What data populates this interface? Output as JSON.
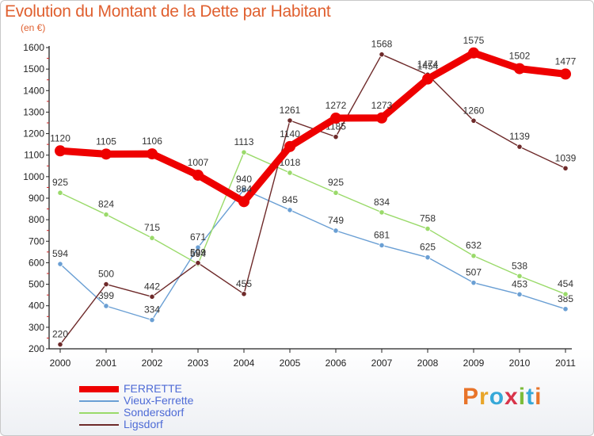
{
  "title": "Evolution du Montant de la Dette par Habitant",
  "unit_label": "(en €)",
  "brand": [
    "P",
    "r",
    "o",
    "x",
    "i",
    "t",
    "i"
  ],
  "chart_data": {
    "type": "line",
    "x": [
      "2000",
      "2001",
      "2002",
      "2003",
      "2004",
      "2005",
      "2006",
      "2007",
      "2008",
      "2009",
      "2010",
      "2011"
    ],
    "ylim": [
      200,
      1600
    ],
    "yticks": [
      200,
      300,
      400,
      500,
      600,
      700,
      800,
      900,
      1000,
      1100,
      1200,
      1300,
      1400,
      1500,
      1600
    ],
    "grid": false,
    "legend_position": "bottom-left",
    "series": [
      {
        "name": "FERRETTE",
        "color": "#ee0000",
        "values": [
          1120,
          1105,
          1106,
          1007,
          884,
          1140,
          1272,
          1273,
          1454,
          1575,
          1502,
          1477
        ]
      },
      {
        "name": "Vieux-Ferrette",
        "color": "#6a9fd4",
        "values": [
          594,
          399,
          334,
          671,
          940,
          845,
          749,
          681,
          625,
          507,
          453,
          385
        ]
      },
      {
        "name": "Sondersdorf",
        "color": "#9ada6a",
        "values": [
          925,
          824,
          715,
          594,
          1113,
          1018,
          925,
          834,
          758,
          632,
          538,
          454
        ]
      },
      {
        "name": "Ligsdorf",
        "color": "#6e2a2a",
        "values": [
          220,
          500,
          442,
          599,
          455,
          1261,
          1185,
          1568,
          1474,
          1260,
          1139,
          1039
        ]
      }
    ]
  }
}
